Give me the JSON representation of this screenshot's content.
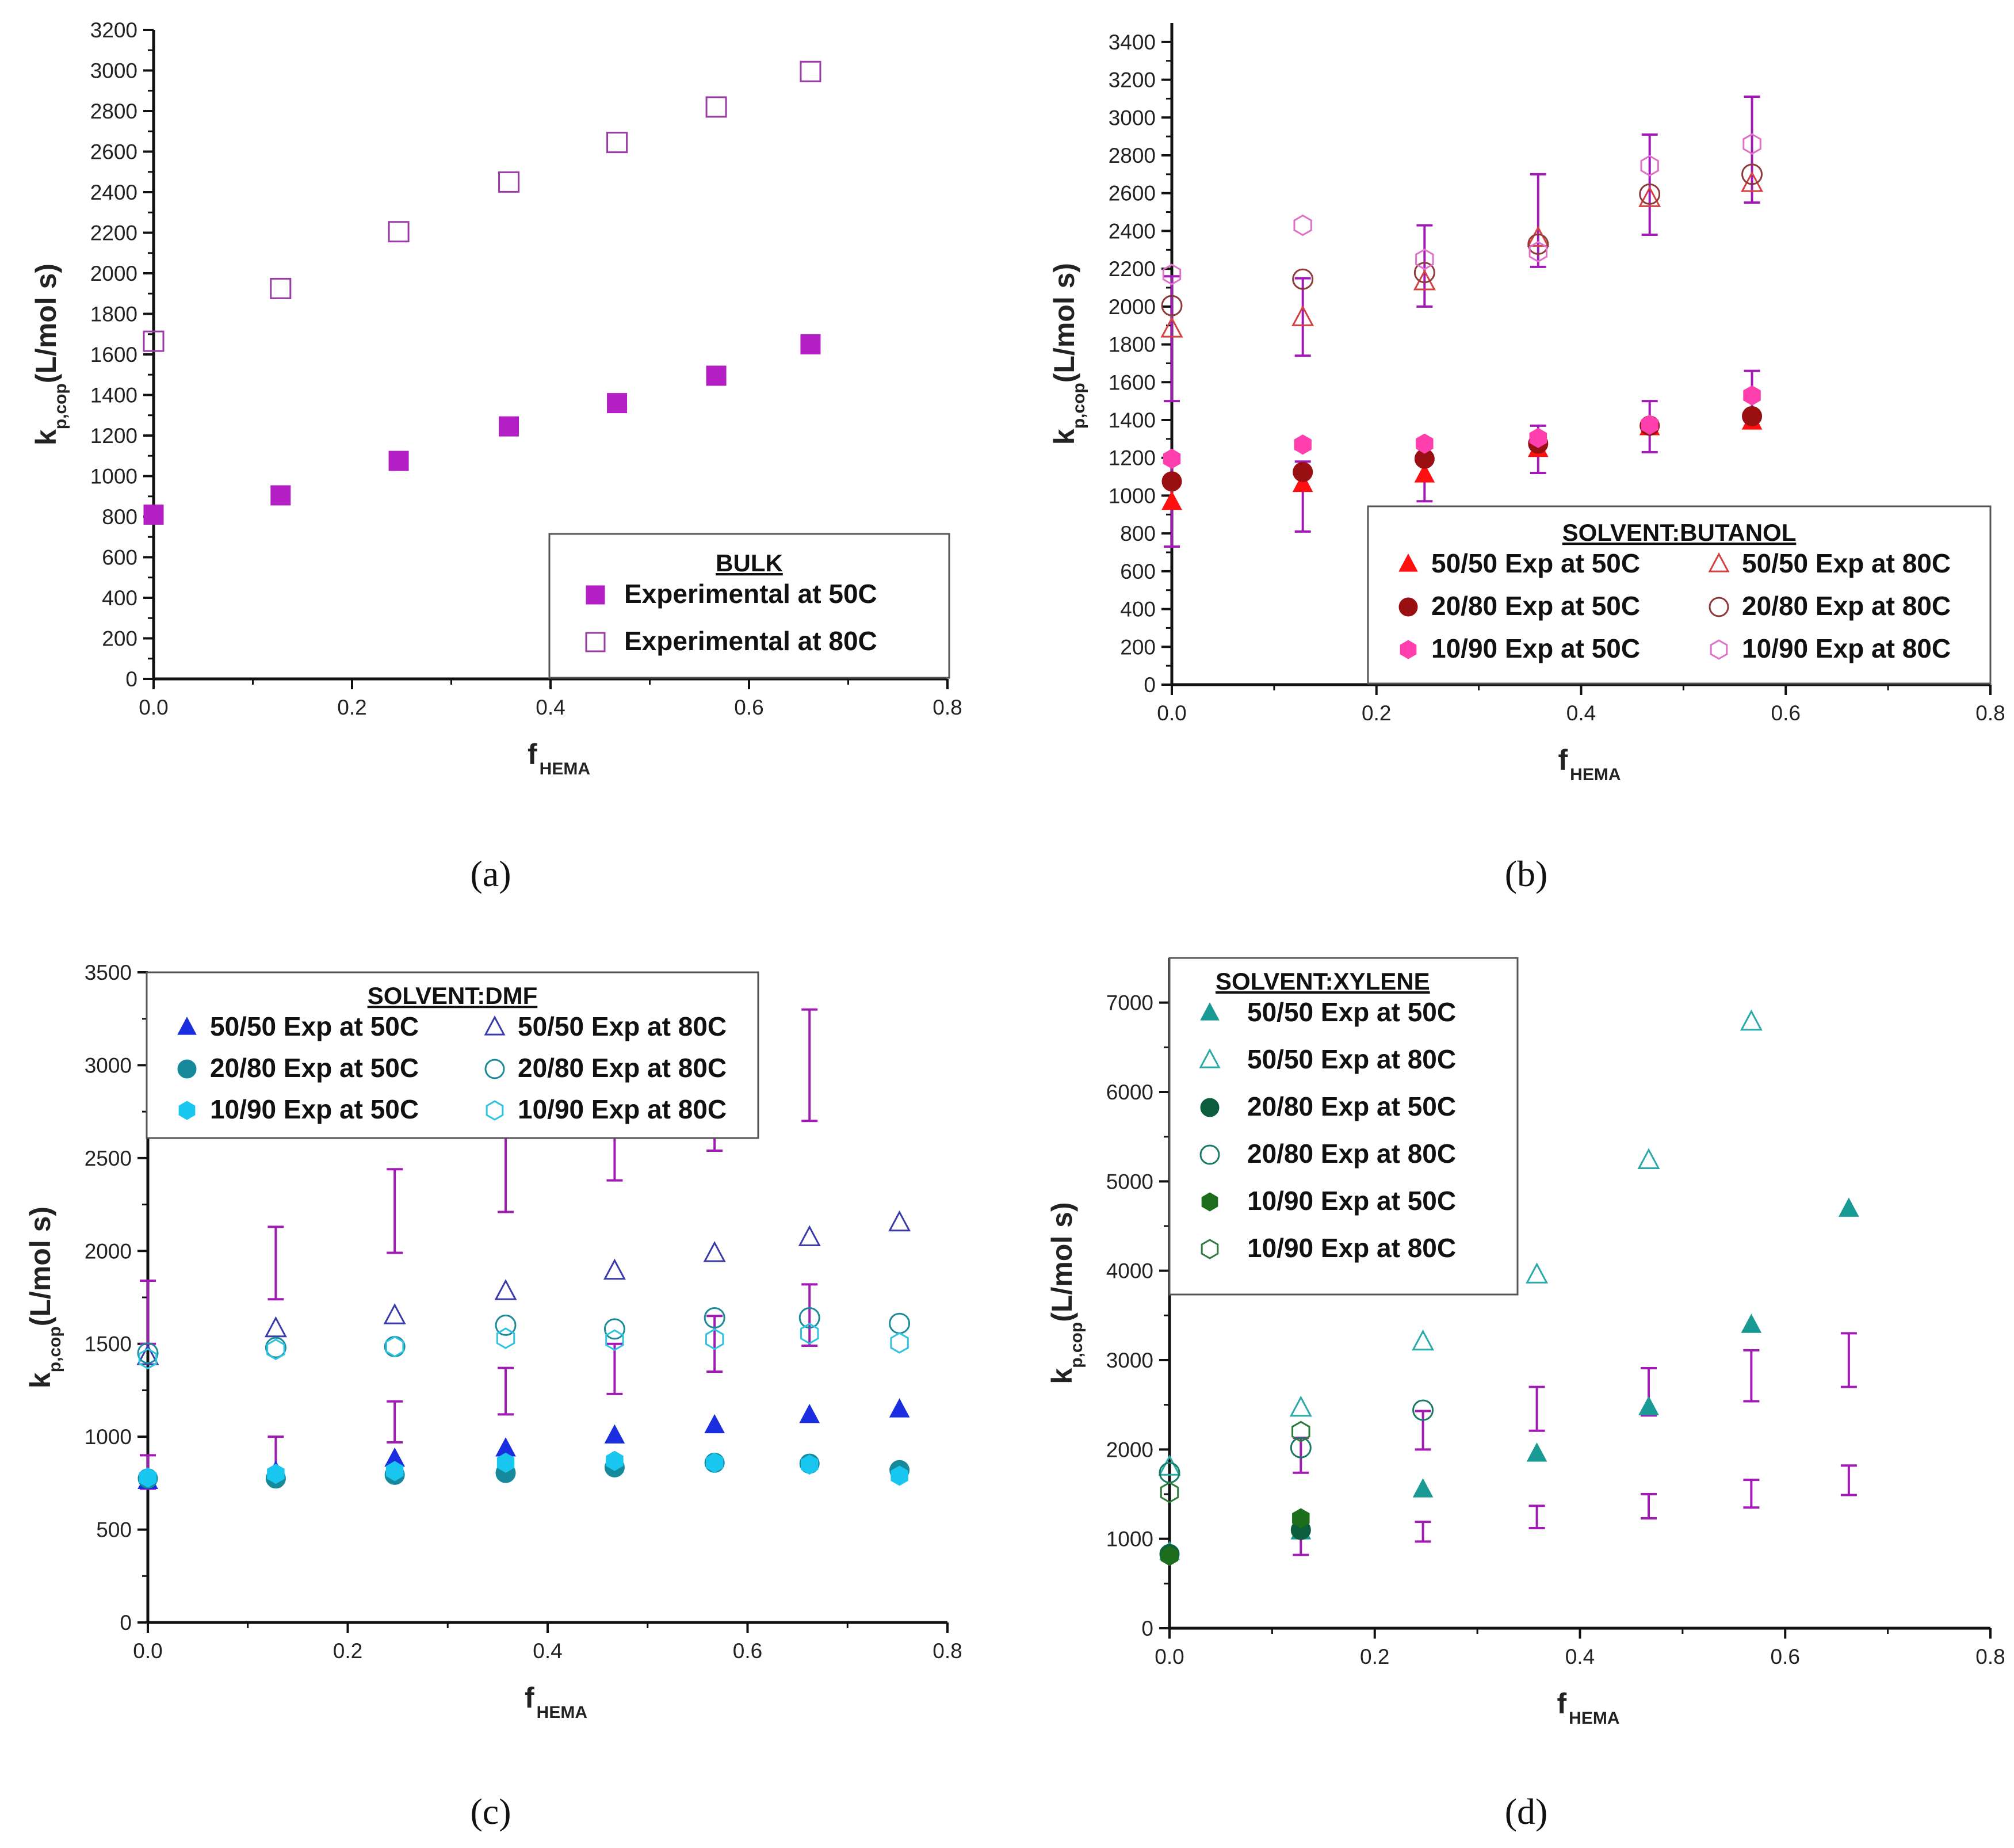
{
  "panels": [
    {
      "id": "a",
      "label": "(a)",
      "chart_data": {
        "type": "scatter",
        "title": "",
        "xlabel": "f",
        "xlabel_sub": "HEMA",
        "ylabel": "k",
        "ylabel_sub": "p,cop",
        "ylabel_suffix": "(L/mol s)",
        "xlim": [
          0,
          0.8
        ],
        "ylim": [
          0,
          3200
        ],
        "xticks": [
          "0.0",
          "0.2",
          "0.4",
          "0.6",
          "0.8"
        ],
        "yticks": [
          "0",
          "200",
          "400",
          "600",
          "800",
          "1000",
          "1200",
          "1400",
          "1600",
          "1800",
          "2000",
          "2200",
          "2400",
          "2600",
          "2800",
          "3000",
          "3200"
        ],
        "grid": false,
        "legend_title": "BULK",
        "legend_placement": "bottom-right",
        "legend_columns": 1,
        "series": [
          {
            "name": "Experimental at 50C",
            "marker": "square",
            "filled": true,
            "color": "#b31fc4",
            "x": [
              0.0,
              0.128,
              0.247,
              0.358,
              0.467,
              0.567,
              0.662
            ],
            "y": [
              810,
              905,
              1075,
              1245,
              1360,
              1495,
              1650
            ]
          },
          {
            "name": "Experimental at 80C",
            "marker": "square",
            "filled": false,
            "color": "#9a3aa6",
            "x": [
              0.0,
              0.128,
              0.247,
              0.358,
              0.467,
              0.567,
              0.662
            ],
            "y": [
              1665,
              1925,
              2205,
              2450,
              2645,
              2820,
              2995
            ]
          }
        ],
        "error_bars": []
      }
    },
    {
      "id": "b",
      "label": "(b)",
      "chart_data": {
        "type": "scatter",
        "title": "",
        "xlabel": "f",
        "xlabel_sub": "HEMA",
        "ylabel": "k",
        "ylabel_sub": "p,cop",
        "ylabel_suffix": "(L/mol s)",
        "xlim": [
          0,
          0.8
        ],
        "ylim": [
          0,
          3500
        ],
        "xticks": [
          "0.0",
          "0.2",
          "0.4",
          "0.6",
          "0.8"
        ],
        "yticks": [
          "0",
          "200",
          "400",
          "600",
          "800",
          "1000",
          "1200",
          "1400",
          "1600",
          "1800",
          "2000",
          "2200",
          "2400",
          "2600",
          "2800",
          "3000",
          "3200",
          "3400"
        ],
        "grid": false,
        "legend_title": "SOLVENT:BUTANOL",
        "legend_placement": "bottom-right",
        "legend_columns": 2,
        "series": [
          {
            "name": "50/50 Exp at 50C",
            "marker": "triangle",
            "filled": true,
            "color": "#ff1010",
            "x": [
              0.0,
              0.128,
              0.247,
              0.358,
              0.467,
              0.567
            ],
            "y": [
              965,
              1060,
              1110,
              1245,
              1360,
              1390
            ]
          },
          {
            "name": "20/80 Exp at 50C",
            "marker": "circle",
            "filled": true,
            "color": "#9a0f12",
            "x": [
              0.0,
              0.128,
              0.247,
              0.358,
              0.467,
              0.567
            ],
            "y": [
              1075,
              1125,
              1195,
              1275,
              1370,
              1420
            ]
          },
          {
            "name": "10/90 Exp at 50C",
            "marker": "hexagon",
            "filled": true,
            "color": "#ff3fae",
            "x": [
              0.0,
              0.128,
              0.247,
              0.358,
              0.467,
              0.567
            ],
            "y": [
              1195,
              1270,
              1275,
              1305,
              1375,
              1530
            ]
          },
          {
            "name": "50/50 Exp at 80C",
            "marker": "triangle",
            "filled": false,
            "color": "#d54040",
            "x": [
              0.0,
              0.128,
              0.247,
              0.358,
              0.467,
              0.567
            ],
            "y": [
              1880,
              1940,
              2130,
              2360,
              2570,
              2650
            ]
          },
          {
            "name": "20/80 Exp at 80C",
            "marker": "circle",
            "filled": false,
            "color": "#8f3a3a",
            "x": [
              0.0,
              0.128,
              0.247,
              0.358,
              0.467,
              0.567
            ],
            "y": [
              2005,
              2145,
              2180,
              2330,
              2595,
              2700
            ]
          },
          {
            "name": "10/90 Exp at 80C",
            "marker": "hexagon",
            "filled": false,
            "color": "#e071c9",
            "x": [
              0.0,
              0.128,
              0.247,
              0.358,
              0.467,
              0.567
            ],
            "y": [
              2170,
              2430,
              2250,
              2290,
              2745,
              2860
            ]
          }
        ],
        "error_bars": [
          {
            "x": 0.0,
            "low": 730,
            "high": 1190
          },
          {
            "x": 0.0,
            "low": 1500,
            "high": 2160
          },
          {
            "x": 0.128,
            "low": 810,
            "high": 1180
          },
          {
            "x": 0.128,
            "low": 1740,
            "high": 2150
          },
          {
            "x": 0.247,
            "low": 970,
            "high": 1180
          },
          {
            "x": 0.247,
            "low": 2000,
            "high": 2430
          },
          {
            "x": 0.358,
            "low": 1120,
            "high": 1370
          },
          {
            "x": 0.358,
            "low": 2210,
            "high": 2700
          },
          {
            "x": 0.467,
            "low": 1230,
            "high": 1500
          },
          {
            "x": 0.467,
            "low": 2380,
            "high": 2910
          },
          {
            "x": 0.567,
            "low": 1370,
            "high": 1660
          },
          {
            "x": 0.567,
            "low": 2550,
            "high": 3110
          }
        ]
      }
    },
    {
      "id": "c",
      "label": "(c)",
      "chart_data": {
        "type": "scatter",
        "title": "",
        "xlabel": "f",
        "xlabel_sub": "HEMA",
        "ylabel": "k",
        "ylabel_sub": "p,cop",
        "ylabel_suffix": "(L/mol s)",
        "xlim": [
          0,
          0.8
        ],
        "ylim": [
          0,
          3500
        ],
        "xticks": [
          "0.0",
          "0.2",
          "0.4",
          "0.6",
          "0.8"
        ],
        "yticks": [
          "0",
          "500",
          "1000",
          "1500",
          "2000",
          "2500",
          "3000",
          "3500"
        ],
        "grid": false,
        "legend_title": "SOLVENT:DMF",
        "legend_placement": "top",
        "legend_columns": 2,
        "series": [
          {
            "name": "50/50 Exp at 50C",
            "marker": "triangle",
            "filled": true,
            "color": "#1a2ee0",
            "x": [
              0.0,
              0.128,
              0.247,
              0.358,
              0.467,
              0.567,
              0.662,
              0.752
            ],
            "y": [
              760,
              810,
              880,
              935,
              1005,
              1060,
              1115,
              1145
            ]
          },
          {
            "name": "20/80 Exp at 50C",
            "marker": "circle",
            "filled": true,
            "color": "#16899b",
            "x": [
              0.0,
              0.128,
              0.247,
              0.358,
              0.467,
              0.567,
              0.662,
              0.752
            ],
            "y": [
              775,
              775,
              795,
              805,
              835,
              860,
              855,
              820
            ]
          },
          {
            "name": "10/90 Exp at 50C",
            "marker": "hexagon",
            "filled": true,
            "color": "#19c6f0",
            "x": [
              0.0,
              0.128,
              0.247,
              0.358,
              0.467,
              0.567,
              0.662,
              0.752
            ],
            "y": [
              780,
              800,
              815,
              860,
              870,
              860,
              850,
              790
            ]
          },
          {
            "name": "50/50 Exp at 80C",
            "marker": "triangle",
            "filled": false,
            "color": "#3a3aa8",
            "x": [
              0.0,
              0.128,
              0.247,
              0.358,
              0.467,
              0.567,
              0.662,
              0.752
            ],
            "y": [
              1430,
              1580,
              1650,
              1780,
              1890,
              1985,
              2070,
              2150
            ]
          },
          {
            "name": "20/80 Exp at 80C",
            "marker": "circle",
            "filled": false,
            "color": "#1d8a99",
            "x": [
              0.0,
              0.128,
              0.247,
              0.358,
              0.467,
              0.567,
              0.662,
              0.752
            ],
            "y": [
              1450,
              1480,
              1485,
              1600,
              1580,
              1640,
              1640,
              1610
            ]
          },
          {
            "name": "10/90 Exp at 80C",
            "marker": "hexagon",
            "filled": false,
            "color": "#2fc3e0",
            "x": [
              0.0,
              0.128,
              0.247,
              0.358,
              0.467,
              0.567,
              0.662,
              0.752
            ],
            "y": [
              1420,
              1470,
              1485,
              1530,
              1520,
              1525,
              1555,
              1505
            ]
          }
        ],
        "error_bars": [
          {
            "x": 0.0,
            "low": 1500,
            "high": 1840
          },
          {
            "x": 0.0,
            "low": 720,
            "high": 900
          },
          {
            "x": 0.128,
            "low": 800,
            "high": 1000
          },
          {
            "x": 0.128,
            "low": 1740,
            "high": 2130
          },
          {
            "x": 0.247,
            "low": 970,
            "high": 1190
          },
          {
            "x": 0.247,
            "low": 1990,
            "high": 2440
          },
          {
            "x": 0.358,
            "low": 1120,
            "high": 1370
          },
          {
            "x": 0.358,
            "low": 2210,
            "high": 2700
          },
          {
            "x": 0.467,
            "low": 1230,
            "high": 1500
          },
          {
            "x": 0.467,
            "low": 2380,
            "high": 2910
          },
          {
            "x": 0.567,
            "low": 1350,
            "high": 1650
          },
          {
            "x": 0.567,
            "low": 2540,
            "high": 3110
          },
          {
            "x": 0.662,
            "low": 1490,
            "high": 1820
          },
          {
            "x": 0.662,
            "low": 2700,
            "high": 3300
          }
        ]
      }
    },
    {
      "id": "d",
      "label": "(d)",
      "chart_data": {
        "type": "scatter",
        "title": "",
        "xlabel": "f",
        "xlabel_sub": "HEMA",
        "ylabel": "k",
        "ylabel_sub": "p,cop",
        "ylabel_suffix": "(L/mol s)",
        "xlim": [
          0,
          0.8
        ],
        "ylim": [
          0,
          7500
        ],
        "xticks": [
          "0.0",
          "0.2",
          "0.4",
          "0.6",
          "0.8"
        ],
        "yticks": [
          "0",
          "1000",
          "2000",
          "3000",
          "4000",
          "5000",
          "6000",
          "7000"
        ],
        "grid": false,
        "legend_title": "SOLVENT:XYLENE",
        "legend_placement": "top-left",
        "legend_columns": 1,
        "series": [
          {
            "name": "50/50 Exp at 50C",
            "marker": "triangle",
            "filled": true,
            "color": "#1a9a94",
            "x": [
              0.0,
              0.128,
              0.247,
              0.358,
              0.467,
              0.567,
              0.662
            ],
            "y": [
              850,
              1080,
              1550,
              1950,
              2470,
              3390,
              4690
            ]
          },
          {
            "name": "50/50 Exp at 80C",
            "marker": "triangle",
            "filled": false,
            "color": "#2aa9a9",
            "x": [
              0.0,
              0.128,
              0.247,
              0.358,
              0.467,
              0.567
            ],
            "y": [
              1800,
              2460,
              3200,
              3950,
              5230,
              6780
            ]
          },
          {
            "name": "20/80 Exp at 50C",
            "marker": "circle",
            "filled": true,
            "color": "#0c5f3e",
            "x": [
              0.0,
              0.128
            ],
            "y": [
              830,
              1100
            ]
          },
          {
            "name": "20/80 Exp at 80C",
            "marker": "circle",
            "filled": false,
            "color": "#1a7a66",
            "x": [
              0.0,
              0.128,
              0.247
            ],
            "y": [
              1740,
              2020,
              2440
            ]
          },
          {
            "name": "10/90 Exp at 50C",
            "marker": "hexagon",
            "filled": true,
            "color": "#1c6e1c",
            "x": [
              0.0,
              0.128
            ],
            "y": [
              810,
              1230
            ]
          },
          {
            "name": "10/90 Exp at 80C",
            "marker": "hexagon",
            "filled": false,
            "color": "#2d7a3a",
            "x": [
              0.0,
              0.128
            ],
            "y": [
              1520,
              2200
            ]
          }
        ],
        "error_bars": [
          {
            "x": 0.128,
            "low": 820,
            "high": 1190
          },
          {
            "x": 0.128,
            "low": 1740,
            "high": 2130
          },
          {
            "x": 0.247,
            "low": 970,
            "high": 1190
          },
          {
            "x": 0.247,
            "low": 2000,
            "high": 2430
          },
          {
            "x": 0.358,
            "low": 1120,
            "high": 1370
          },
          {
            "x": 0.358,
            "low": 2210,
            "high": 2700
          },
          {
            "x": 0.467,
            "low": 1230,
            "high": 1500
          },
          {
            "x": 0.467,
            "low": 2380,
            "high": 2910
          },
          {
            "x": 0.567,
            "low": 1350,
            "high": 1660
          },
          {
            "x": 0.567,
            "low": 2540,
            "high": 3110
          },
          {
            "x": 0.662,
            "low": 1490,
            "high": 1820
          },
          {
            "x": 0.662,
            "low": 2700,
            "high": 3300
          }
        ]
      }
    }
  ],
  "style": {
    "error_bar_color": "#a21ab5",
    "axis_color": "#111111"
  }
}
